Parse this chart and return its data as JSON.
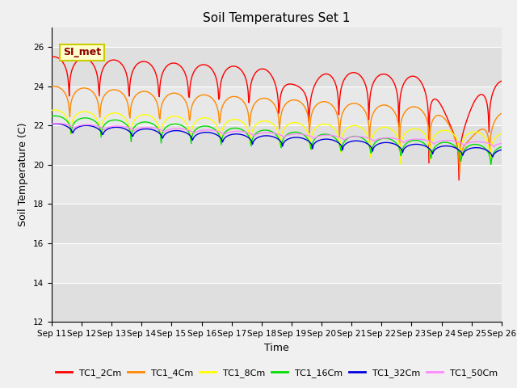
{
  "title": "Soil Temperatures Set 1",
  "xlabel": "Time",
  "ylabel": "Soil Temperature (C)",
  "ylim": [
    12,
    27
  ],
  "yticks": [
    12,
    14,
    16,
    18,
    20,
    22,
    24,
    26
  ],
  "x_labels": [
    "Sep 11",
    "Sep 12",
    "Sep 13",
    "Sep 14",
    "Sep 15",
    "Sep 16",
    "Sep 17",
    "Sep 18",
    "Sep 19",
    "Sep 20",
    "Sep 21",
    "Sep 22",
    "Sep 23",
    "Sep 24",
    "Sep 25",
    "Sep 26"
  ],
  "annotation_text": "SI_met",
  "series_labels": [
    "TC1_2Cm",
    "TC1_4Cm",
    "TC1_8Cm",
    "TC1_16Cm",
    "TC1_32Cm",
    "TC1_50Cm"
  ],
  "series_colors": [
    "#ff0000",
    "#ff8800",
    "#ffff00",
    "#00dd00",
    "#0000dd",
    "#ff88ff"
  ],
  "line_width": 1.0,
  "axes_bg_color": "#e8e8e8",
  "fig_bg_color": "#f0f0f0",
  "title_fontsize": 11,
  "label_fontsize": 9,
  "tick_fontsize": 7.5,
  "legend_fontsize": 8,
  "figsize": [
    6.4,
    4.8
  ],
  "dpi": 100
}
